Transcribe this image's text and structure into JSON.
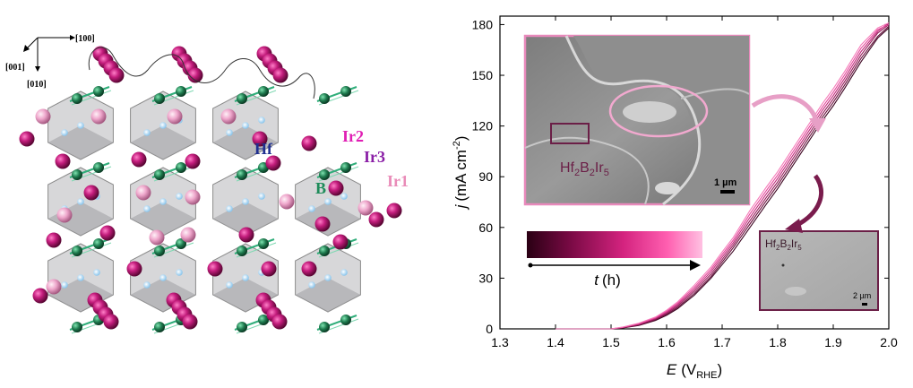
{
  "structure_panel": {
    "axes": {
      "a": "[100]",
      "b": "[001]",
      "c": "[010]"
    },
    "labels": [
      {
        "text": "Hf",
        "color": "#1f2f8f"
      },
      {
        "text": "Ir2",
        "color": "#e01eb4"
      },
      {
        "text": "Ir3",
        "color": "#8a1ea6"
      },
      {
        "text": "B",
        "color": "#1e8c5a"
      },
      {
        "text": "Ir1",
        "color": "#e98bb8"
      }
    ],
    "colors": {
      "ir_dark": "#b0186e",
      "ir_light": "#e8a0c4",
      "boron": "#1e7a4e",
      "hafnium": "#bfe0f4",
      "polyhedron": "#c9c9cc"
    }
  },
  "chart_data": {
    "type": "line",
    "xlabel_main": "E",
    "xlabel_unit": "(V",
    "xlabel_sub": "RHE",
    "xlabel_close": ")",
    "ylabel_main": "j",
    "ylabel_unit": "(mA cm",
    "ylabel_sup": "-2",
    "ylabel_close": ")",
    "xlim": [
      1.3,
      2.0
    ],
    "ylim": [
      0,
      185
    ],
    "xticks": [
      "1.3",
      "1.4",
      "1.5",
      "1.6",
      "1.7",
      "1.8",
      "1.9",
      "2.0"
    ],
    "xtick_values": [
      1.3,
      1.4,
      1.5,
      1.6,
      1.7,
      1.8,
      1.9,
      2.0
    ],
    "yticks": [
      "0",
      "30",
      "60",
      "90",
      "120",
      "150",
      "180"
    ],
    "ytick_values": [
      0,
      30,
      60,
      90,
      120,
      150,
      180
    ],
    "x": [
      1.4,
      1.45,
      1.5,
      1.52,
      1.55,
      1.58,
      1.6,
      1.62,
      1.65,
      1.68,
      1.7,
      1.72,
      1.75,
      1.78,
      1.8,
      1.82,
      1.85,
      1.88,
      1.9,
      1.92,
      1.95,
      1.98,
      2.0
    ],
    "series": [
      {
        "color": "#3d0622",
        "y": [
          0,
          0,
          0,
          0.5,
          2,
          5,
          8,
          12,
          20,
          30,
          38,
          46,
          60,
          74,
          83,
          93,
          108,
          123,
          132,
          142,
          158,
          172,
          178
        ]
      },
      {
        "color": "#6b0f3d",
        "y": [
          0,
          0,
          0,
          0.6,
          2.2,
          5.4,
          8.6,
          12.8,
          21,
          31,
          39.5,
          48,
          62,
          76,
          85,
          95,
          110,
          125,
          134,
          144,
          160,
          173,
          179
        ]
      },
      {
        "color": "#951b59",
        "y": [
          0,
          0,
          0,
          0.7,
          2.5,
          5.8,
          9.2,
          13.6,
          22.2,
          32.4,
          41,
          49.5,
          64,
          78,
          87,
          97,
          112,
          127,
          136,
          146,
          162,
          175,
          180
        ]
      },
      {
        "color": "#c02a7a",
        "y": [
          0,
          0,
          0,
          0.8,
          2.8,
          6.2,
          9.8,
          14.4,
          23.4,
          33.8,
          42.5,
          51,
          66,
          80,
          89,
          99,
          114,
          129,
          138,
          148,
          164,
          176,
          181
        ]
      },
      {
        "color": "#e5469a",
        "y": [
          0,
          0,
          0,
          0.9,
          3.1,
          6.6,
          10.4,
          15.2,
          24.6,
          35.2,
          44,
          52.5,
          68,
          82,
          91,
          101,
          116,
          131,
          140,
          150,
          166,
          177,
          180
        ]
      },
      {
        "color": "#f57cba",
        "y": [
          0,
          0,
          0,
          1.0,
          3.4,
          7.0,
          11.0,
          16.0,
          25.8,
          36.6,
          45.5,
          54,
          70,
          84,
          93,
          103,
          118,
          133,
          142,
          152,
          168,
          178,
          181
        ]
      }
    ],
    "legend_time": {
      "label": "t",
      "unit": "(h)",
      "gradient": [
        "#2a0014",
        "#7a0a45",
        "#d4237f",
        "#ff5fb0",
        "#ffc1e2"
      ]
    }
  },
  "inset_large": {
    "label": "Hf",
    "sub1": "2",
    "mid": "B",
    "sub2": "2",
    "end": "Ir",
    "sub3": "5",
    "scalebar": "1 µm",
    "border_color": "#e889bb"
  },
  "inset_small": {
    "label": "Hf",
    "sub1": "2",
    "mid": "B",
    "sub2": "2",
    "end": "Ir",
    "sub3": "5",
    "scalebar": "2 µm",
    "border_color": "#6b1f47"
  }
}
